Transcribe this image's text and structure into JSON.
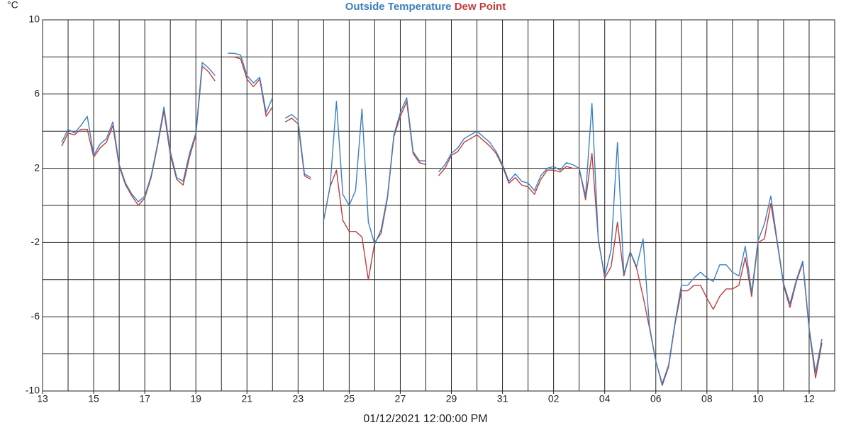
{
  "chart_data": {
    "type": "line",
    "title_series_legend": true,
    "y_label": "°C",
    "x_label": "01/12/2021 12:00:00 PM",
    "xlim": [
      0,
      31
    ],
    "xticks": [
      {
        "value": 0,
        "label": "13"
      },
      {
        "value": 2,
        "label": "15"
      },
      {
        "value": 4,
        "label": "17"
      },
      {
        "value": 6,
        "label": "19"
      },
      {
        "value": 8,
        "label": "21"
      },
      {
        "value": 10,
        "label": "23"
      },
      {
        "value": 12,
        "label": "25"
      },
      {
        "value": 14,
        "label": "27"
      },
      {
        "value": 16,
        "label": "29"
      },
      {
        "value": 18,
        "label": "31"
      },
      {
        "value": 20,
        "label": "02"
      },
      {
        "value": 22,
        "label": "04"
      },
      {
        "value": 24,
        "label": "06"
      },
      {
        "value": 26,
        "label": "08"
      },
      {
        "value": 28,
        "label": "10"
      },
      {
        "value": 30,
        "label": "12"
      }
    ],
    "xminorticks": [
      1,
      3,
      5,
      7,
      9,
      11,
      13,
      15,
      17,
      19,
      21,
      23,
      25,
      27,
      29,
      31
    ],
    "ylim": [
      -10,
      10
    ],
    "yticks": [
      10,
      6,
      2,
      -2,
      -6,
      -10
    ],
    "yminorticks": [
      8,
      4,
      0,
      -4,
      -8
    ],
    "grid": true,
    "x": [
      0.75,
      1,
      1.25,
      1.5,
      1.75,
      2,
      2.25,
      2.5,
      2.75,
      3,
      3.25,
      3.5,
      3.75,
      4,
      4.25,
      4.5,
      4.75,
      5,
      5.25,
      5.5,
      5.75,
      6,
      6.25,
      6.5,
      6.75,
      7,
      7.25,
      7.5,
      7.75,
      8,
      8.25,
      8.5,
      8.75,
      9,
      9.25,
      9.5,
      9.75,
      10,
      10.25,
      10.5,
      10.75,
      11,
      11.25,
      11.5,
      11.75,
      12,
      12.25,
      12.5,
      12.75,
      13,
      13.25,
      13.5,
      13.75,
      14,
      14.25,
      14.5,
      14.75,
      15,
      15.25,
      15.5,
      15.75,
      16,
      16.25,
      16.5,
      16.75,
      17,
      17.25,
      17.5,
      17.75,
      18,
      18.25,
      18.5,
      18.75,
      19,
      19.25,
      19.5,
      19.75,
      20,
      20.25,
      20.5,
      20.75,
      21,
      21.25,
      21.5,
      21.75,
      22,
      22.25,
      22.5,
      22.75,
      23,
      23.25,
      23.5,
      23.75,
      24,
      24.25,
      24.5,
      24.75,
      25,
      25.25,
      25.5,
      25.75,
      26,
      26.25,
      26.5,
      26.75,
      27,
      27.25,
      27.5,
      27.75,
      28,
      28.25,
      28.5,
      28.75,
      29,
      29.25,
      29.5,
      29.75,
      30,
      30.25,
      30.5
    ],
    "series": [
      {
        "name": "Outside Temperature",
        "color": "#3b80c2",
        "values": [
          3.4,
          4.1,
          3.9,
          4.3,
          4.8,
          2.7,
          3.3,
          3.6,
          4.5,
          2.2,
          1.2,
          0.6,
          0.2,
          0.5,
          1.6,
          3.3,
          5.3,
          2.9,
          1.5,
          1.3,
          2.8,
          3.9,
          7.7,
          7.4,
          7.0,
          null,
          8.2,
          8.2,
          8.1,
          7.0,
          6.6,
          6.9,
          5.0,
          5.8,
          null,
          4.7,
          4.9,
          4.6,
          1.7,
          1.5,
          null,
          -0.8,
          1.0,
          5.6,
          0.6,
          0.0,
          0.8,
          5.2,
          -0.9,
          -2.1,
          -1.3,
          0.5,
          3.8,
          5.0,
          5.8,
          2.9,
          2.4,
          2.4,
          null,
          1.8,
          2.2,
          2.8,
          3.1,
          3.6,
          3.8,
          4.0,
          3.7,
          3.4,
          2.9,
          2.2,
          1.3,
          1.7,
          1.3,
          1.2,
          0.8,
          1.6,
          2.0,
          2.1,
          1.9,
          2.3,
          2.2,
          2.0,
          0.5,
          5.5,
          -1.9,
          -3.8,
          -2.4,
          3.4,
          -3.7,
          -2.5,
          -3.3,
          -1.8,
          -6.5,
          -8.4,
          -9.6,
          -8.6,
          -6.3,
          -4.3,
          -4.3,
          -3.9,
          -3.6,
          -3.9,
          -4.1,
          -3.2,
          -3.2,
          -3.6,
          -3.8,
          -2.2,
          -4.7,
          -1.9,
          -1.0,
          0.5,
          -1.9,
          -4.2,
          -5.3,
          -4.0,
          -3.0,
          -6.6,
          -9.0,
          -7.2
        ]
      },
      {
        "name": "Dew Point",
        "color": "#c23b3c",
        "values": [
          3.2,
          3.9,
          3.8,
          4.1,
          4.1,
          2.6,
          3.1,
          3.4,
          4.3,
          2.1,
          1.1,
          0.5,
          0.0,
          0.4,
          1.5,
          3.2,
          5.1,
          2.7,
          1.4,
          1.1,
          2.6,
          3.8,
          7.5,
          7.2,
          6.7,
          null,
          8.0,
          8.0,
          7.9,
          6.8,
          6.4,
          6.8,
          4.8,
          5.3,
          null,
          4.5,
          4.7,
          4.4,
          1.6,
          1.4,
          null,
          -0.8,
          1.0,
          1.9,
          -0.8,
          -1.4,
          -1.4,
          -1.7,
          -4.0,
          -2.0,
          -1.5,
          0.4,
          3.7,
          4.8,
          5.6,
          2.8,
          2.3,
          2.2,
          null,
          1.6,
          2.0,
          2.7,
          2.9,
          3.4,
          3.6,
          3.8,
          3.5,
          3.2,
          2.8,
          2.1,
          1.2,
          1.5,
          1.1,
          1.0,
          0.6,
          1.4,
          1.9,
          1.9,
          1.8,
          2.1,
          2.0,
          2.0,
          0.3,
          2.8,
          -1.8,
          -3.9,
          -3.3,
          -0.9,
          -3.8,
          -2.5,
          -3.4,
          -4.9,
          -6.6,
          -8.4,
          -9.7,
          -8.7,
          -6.4,
          -4.6,
          -4.6,
          -4.3,
          -4.3,
          -5.0,
          -5.6,
          -4.9,
          -4.5,
          -4.5,
          -4.3,
          -2.8,
          -4.9,
          -2.0,
          -1.8,
          0.1,
          -2.0,
          -4.3,
          -5.5,
          -4.1,
          -3.1,
          -6.7,
          -9.3,
          -7.4
        ]
      }
    ]
  }
}
